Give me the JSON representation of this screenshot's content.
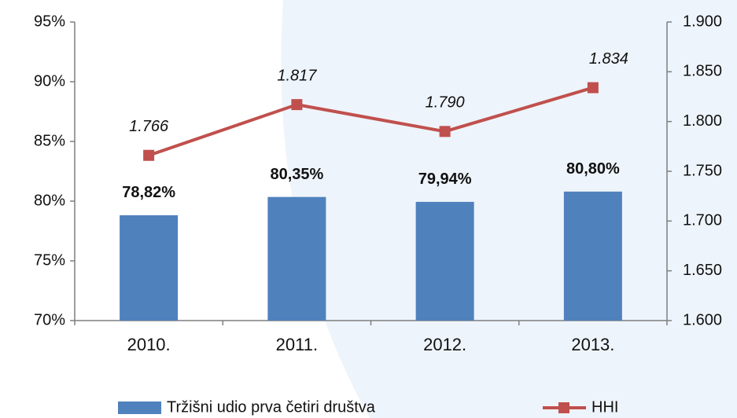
{
  "chart_data": {
    "type": "bar",
    "categories": [
      "2010.",
      "2011.",
      "2012.",
      "2013."
    ],
    "series": [
      {
        "name": "Tržišni udio prva četiri društva",
        "color": "#4f81bd",
        "values": [
          78.82,
          80.35,
          79.94,
          80.8
        ],
        "value_labels": [
          "78,82%",
          "80,35%",
          "79,94%",
          "80,80%"
        ]
      },
      {
        "name": "HHI",
        "type": "line",
        "axis": "y2",
        "color": "#c0504d",
        "values": [
          1766,
          1817,
          1790,
          1834
        ],
        "value_labels": [
          "1.766",
          "1.817",
          "1.790",
          "1.834"
        ]
      }
    ],
    "ylim": [
      70,
      95
    ],
    "yticks": [
      {
        "value": 70,
        "label": "70%"
      },
      {
        "value": 75,
        "label": "75%"
      },
      {
        "value": 80,
        "label": "80%"
      },
      {
        "value": 85,
        "label": "85%"
      },
      {
        "value": 90,
        "label": "90%"
      },
      {
        "value": 95,
        "label": "95%"
      }
    ],
    "y2lim": [
      1600,
      1900
    ],
    "y2ticks": [
      {
        "value": 1600,
        "label": "1.600"
      },
      {
        "value": 1650,
        "label": "1.650"
      },
      {
        "value": 1700,
        "label": "1.700"
      },
      {
        "value": 1750,
        "label": "1.750"
      },
      {
        "value": 1800,
        "label": "1.800"
      },
      {
        "value": 1850,
        "label": "1.850"
      },
      {
        "value": 1900,
        "label": "1.900"
      }
    ],
    "grid": false,
    "legend": "bottom"
  }
}
